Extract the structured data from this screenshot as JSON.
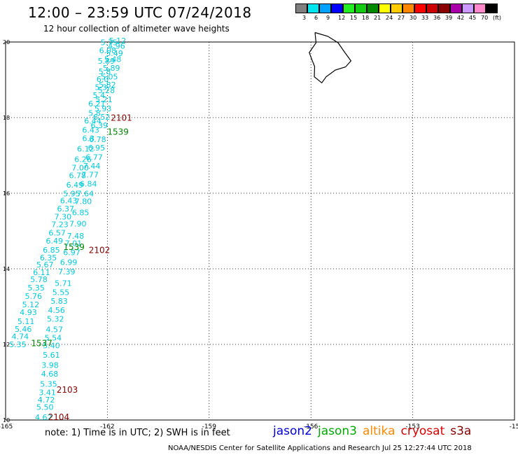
{
  "title": "12:00 – 23:59 UTC 07/24/2018",
  "subtitle": "12 hour collection of altimeter wave heights",
  "colorbar": {
    "labels": [
      "3",
      "6",
      "9",
      "12",
      "15",
      "18",
      "21",
      "24",
      "27",
      "30",
      "33",
      "36",
      "39",
      "42",
      "45",
      "70",
      "(ft)"
    ],
    "colors": [
      "#7f7f7f",
      "#00e5ee",
      "#00a2ff",
      "#0000ff",
      "#22ee22",
      "#11cc11",
      "#008800",
      "#ffff00",
      "#ffcc00",
      "#ff8800",
      "#ff0000",
      "#cc0000",
      "#880000",
      "#aa00aa",
      "#cc99ff",
      "#ff88cc",
      "#000000"
    ]
  },
  "note": "note:  1) Time is in UTC;  2) SWH is in feet",
  "credit": "NOAA/NESDIS Center for Satellite Applications and Research    Jul 25 12:27:44 UTC 2018",
  "missions": [
    {
      "name": "jason2",
      "color": "#0000dd"
    },
    {
      "name": "jason3",
      "color": "#00aa00"
    },
    {
      "name": "altika",
      "color": "#ff8800"
    },
    {
      "name": "cryosat",
      "color": "#dd0000"
    },
    {
      "name": "s3a",
      "color": "#880000"
    }
  ],
  "chart_data": {
    "type": "scatter",
    "xlim": [
      -165,
      -150
    ],
    "ylim": [
      10,
      20
    ],
    "x_ticks": [
      "-165",
      "-162",
      "-159",
      "-156",
      "-153",
      "-15"
    ],
    "y_ticks": [
      "20",
      "18",
      "16",
      "14",
      "12",
      "10"
    ],
    "grid": true,
    "track_label_color": "#00ccdd",
    "tracks": [
      {
        "name": "east track",
        "points": [
          {
            "x": -161.7,
            "y": 19.96,
            "v": "5.12"
          },
          {
            "x": -161.73,
            "y": 19.82,
            "v": "4.96"
          },
          {
            "x": -161.79,
            "y": 19.63,
            "v": "5.49"
          },
          {
            "x": -161.84,
            "y": 19.47,
            "v": "5.48"
          },
          {
            "x": -161.88,
            "y": 19.24,
            "v": "5.89"
          },
          {
            "x": -161.94,
            "y": 19.01,
            "v": "5.05"
          },
          {
            "x": -162.0,
            "y": 18.8,
            "v": "5.82"
          },
          {
            "x": -162.03,
            "y": 18.65,
            "v": "5.28"
          },
          {
            "x": -162.1,
            "y": 18.41,
            "v": "5.21"
          },
          {
            "x": -162.13,
            "y": 18.17,
            "v": "5.93"
          },
          {
            "x": -162.17,
            "y": 17.94,
            "v": "6.52"
          },
          {
            "x": -162.24,
            "y": 17.72,
            "v": "6.39"
          },
          {
            "x": -162.29,
            "y": 17.35,
            "v": "6.78"
          },
          {
            "x": -162.32,
            "y": 17.13,
            "v": "6.95"
          },
          {
            "x": -162.39,
            "y": 16.88,
            "v": "6.77"
          },
          {
            "x": -162.46,
            "y": 16.65,
            "v": "7.44"
          },
          {
            "x": -162.51,
            "y": 16.42,
            "v": "7.77"
          },
          {
            "x": -162.56,
            "y": 16.18,
            "v": "6.84"
          },
          {
            "x": -162.65,
            "y": 15.92,
            "v": "7.64"
          },
          {
            "x": -162.71,
            "y": 15.71,
            "v": "7.80"
          },
          {
            "x": -162.79,
            "y": 15.42,
            "v": "6.85"
          },
          {
            "x": -162.87,
            "y": 15.12,
            "v": "7.90"
          },
          {
            "x": -162.94,
            "y": 14.8,
            "v": "7.48"
          },
          {
            "x": -163.0,
            "y": 14.6,
            "v": "7.01"
          },
          {
            "x": -163.05,
            "y": 14.36,
            "v": "6.97"
          },
          {
            "x": -163.14,
            "y": 14.1,
            "v": "6.99"
          },
          {
            "x": -163.2,
            "y": 13.85,
            "v": "7.39"
          },
          {
            "x": -163.3,
            "y": 13.55,
            "v": "5.71"
          },
          {
            "x": -163.37,
            "y": 13.31,
            "v": "5.55"
          },
          {
            "x": -163.42,
            "y": 13.07,
            "v": "5.83"
          },
          {
            "x": -163.5,
            "y": 12.83,
            "v": "4.56"
          },
          {
            "x": -163.53,
            "y": 12.6,
            "v": "5.32"
          },
          {
            "x": -163.56,
            "y": 12.32,
            "v": "4.57"
          },
          {
            "x": -163.6,
            "y": 12.1,
            "v": "5.54"
          },
          {
            "x": -163.65,
            "y": 11.9,
            "v": "5.40"
          },
          {
            "x": -163.65,
            "y": 11.65,
            "v": "5.61"
          },
          {
            "x": -163.69,
            "y": 11.38,
            "v": "3.98"
          },
          {
            "x": -163.7,
            "y": 11.15,
            "v": "4.68"
          },
          {
            "x": -163.73,
            "y": 10.88,
            "v": "5.35"
          },
          {
            "x": -163.77,
            "y": 10.66,
            "v": "3.41"
          },
          {
            "x": -163.8,
            "y": 10.46,
            "v": "4.72"
          },
          {
            "x": -163.84,
            "y": 10.27,
            "v": "5.50"
          },
          {
            "x": -163.88,
            "y": 10.0,
            "v": "4.62"
          }
        ]
      },
      {
        "name": "west track",
        "points": [
          {
            "x": -161.95,
            "y": 19.92,
            "v": "5.75"
          },
          {
            "x": -161.99,
            "y": 19.7,
            "v": "6.08"
          },
          {
            "x": -162.03,
            "y": 19.43,
            "v": "5.89"
          },
          {
            "x": -162.08,
            "y": 19.15,
            "v": "5.8"
          },
          {
            "x": -162.14,
            "y": 18.94,
            "v": "6.0"
          },
          {
            "x": -162.19,
            "y": 18.73,
            "v": "5.3"
          },
          {
            "x": -162.25,
            "y": 18.52,
            "v": "5.4"
          },
          {
            "x": -162.31,
            "y": 18.3,
            "v": "6.21"
          },
          {
            "x": -162.38,
            "y": 18.05,
            "v": "5.8"
          },
          {
            "x": -162.43,
            "y": 17.84,
            "v": "6.44"
          },
          {
            "x": -162.49,
            "y": 17.6,
            "v": "6.43"
          },
          {
            "x": -162.56,
            "y": 17.38,
            "v": "6.3"
          },
          {
            "x": -162.64,
            "y": 17.1,
            "v": "6.12"
          },
          {
            "x": -162.72,
            "y": 16.82,
            "v": "6.26"
          },
          {
            "x": -162.8,
            "y": 16.6,
            "v": "7.00"
          },
          {
            "x": -162.88,
            "y": 16.4,
            "v": "6.78"
          },
          {
            "x": -162.96,
            "y": 16.15,
            "v": "6.49"
          },
          {
            "x": -163.05,
            "y": 15.92,
            "v": "5.95"
          },
          {
            "x": -163.14,
            "y": 15.73,
            "v": "6.43"
          },
          {
            "x": -163.23,
            "y": 15.52,
            "v": "6.37"
          },
          {
            "x": -163.31,
            "y": 15.31,
            "v": "7.30"
          },
          {
            "x": -163.4,
            "y": 15.1,
            "v": "7.23"
          },
          {
            "x": -163.48,
            "y": 14.88,
            "v": "6.57"
          },
          {
            "x": -163.56,
            "y": 14.67,
            "v": "6.49"
          },
          {
            "x": -163.65,
            "y": 14.43,
            "v": "6.85"
          },
          {
            "x": -163.74,
            "y": 14.22,
            "v": "6.35"
          },
          {
            "x": -163.84,
            "y": 14.04,
            "v": "5.67"
          },
          {
            "x": -163.94,
            "y": 13.83,
            "v": "6.11"
          },
          {
            "x": -164.02,
            "y": 13.65,
            "v": "5.78"
          },
          {
            "x": -164.1,
            "y": 13.43,
            "v": "5.35"
          },
          {
            "x": -164.18,
            "y": 13.2,
            "v": "5.76"
          },
          {
            "x": -164.26,
            "y": 12.98,
            "v": "5.12"
          },
          {
            "x": -164.33,
            "y": 12.78,
            "v": "4.93"
          },
          {
            "x": -164.4,
            "y": 12.54,
            "v": "5.11"
          },
          {
            "x": -164.48,
            "y": 12.33,
            "v": "5.46"
          },
          {
            "x": -164.57,
            "y": 12.14,
            "v": "4.74"
          },
          {
            "x": -164.64,
            "y": 11.93,
            "v": "5.35"
          }
        ]
      }
    ],
    "pass_times": [
      {
        "label": "2101",
        "x": -161.9,
        "y": 17.92,
        "color": "#880000"
      },
      {
        "label": "1539",
        "x": -162.0,
        "y": 17.55,
        "color": "#008800"
      },
      {
        "label": "1539",
        "x": -163.3,
        "y": 14.5,
        "color": "#008800"
      },
      {
        "label": "2102",
        "x": -162.55,
        "y": 14.42,
        "color": "#880000"
      },
      {
        "label": "1537",
        "x": -164.25,
        "y": 11.95,
        "color": "#008800"
      },
      {
        "label": "2103",
        "x": -163.5,
        "y": 10.72,
        "color": "#880000"
      },
      {
        "label": "2104",
        "x": -163.75,
        "y": 10.0,
        "color": "#880000"
      }
    ],
    "coastline_name": "Hawaii (Big Island)"
  }
}
